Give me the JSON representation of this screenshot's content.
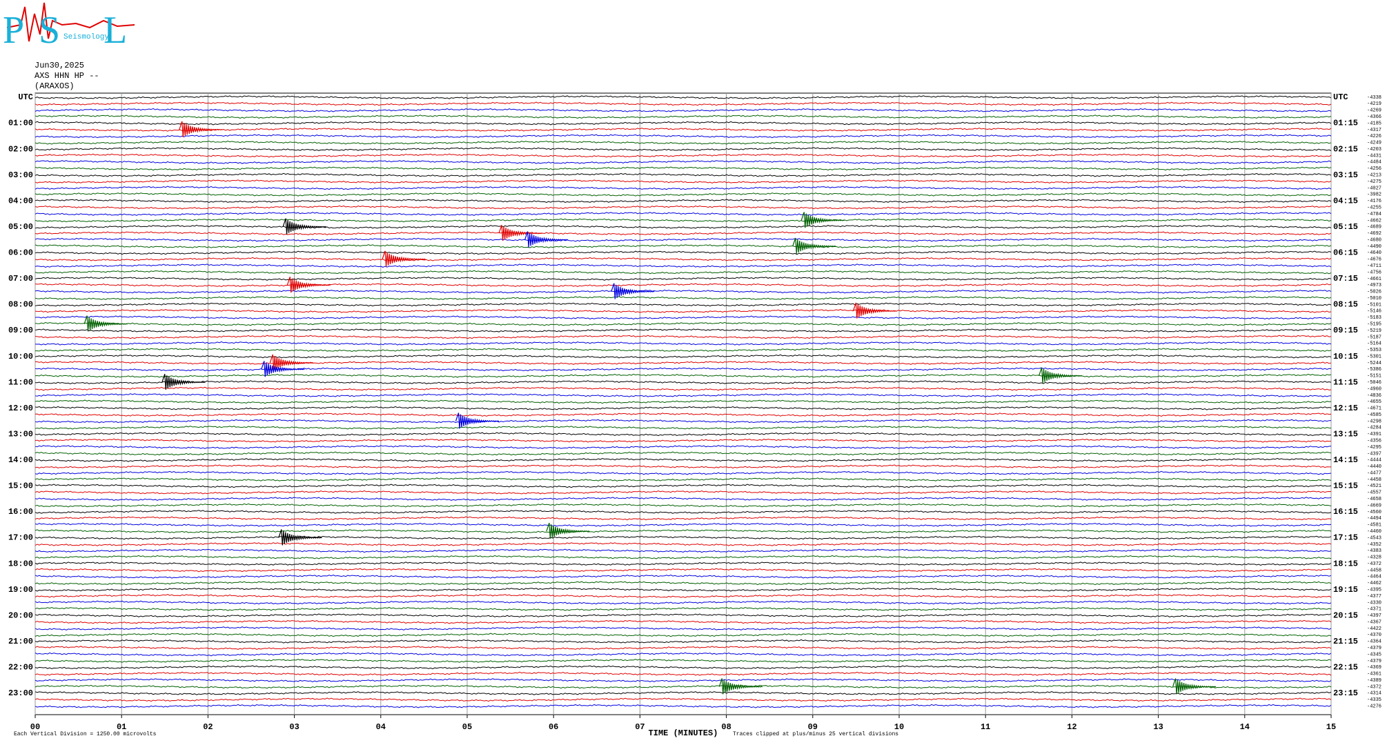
{
  "logo": {
    "letters": [
      "P",
      "S",
      "L"
    ],
    "subtitle": "Seismology"
  },
  "header": {
    "date": "Jun30,2025",
    "channel": "AXS HHN HP --",
    "station": "(ARAXOS)"
  },
  "chart_data": {
    "type": "helicorder",
    "trace_colors": [
      "#000000",
      "#e00000",
      "#0000e0",
      "#006000"
    ],
    "xlim": [
      0,
      15
    ],
    "xticks": [
      {
        "value": 0,
        "label": "00"
      },
      {
        "value": 1,
        "label": "01"
      },
      {
        "value": 2,
        "label": "02"
      },
      {
        "value": 3,
        "label": "03"
      },
      {
        "value": 4,
        "label": "04"
      },
      {
        "value": 5,
        "label": "05"
      },
      {
        "value": 6,
        "label": "06"
      },
      {
        "value": 7,
        "label": "07"
      },
      {
        "value": 8,
        "label": "08"
      },
      {
        "value": 9,
        "label": "09"
      },
      10,
      11,
      12,
      13,
      14,
      15
    ],
    "x_label": "TIME (MINUTES)",
    "left_labels": [
      "UTC",
      "01:00",
      "02:00",
      "03:00",
      "04:00",
      "05:00",
      "06:00",
      "07:00",
      "08:00",
      "09:00",
      "10:00",
      "11:00",
      "12:00",
      "13:00",
      "14:00",
      "15:00",
      "16:00",
      "17:00",
      "18:00",
      "19:00",
      "20:00",
      "21:00",
      "22:00",
      "23:00"
    ],
    "right_labels": [
      "UTC",
      "01:15",
      "02:15",
      "03:15",
      "04:15",
      "05:15",
      "06:15",
      "07:15",
      "08:15",
      "09:15",
      "10:15",
      "11:15",
      "12:15",
      "13:15",
      "14:15",
      "15:15",
      "16:15",
      "17:15",
      "18:15",
      "19:15",
      "20:15",
      "21:15",
      "22:15",
      "23:15"
    ],
    "trace_offsets": [
      -4338,
      -4219,
      -4269,
      -4366,
      -4185,
      -4317,
      -4226,
      -4249,
      -4203,
      -4431,
      -4484,
      -4256,
      -4213,
      -4275,
      -4027,
      -3982,
      -4176,
      -4255,
      -4784,
      -4662,
      -4689,
      -4692,
      -4680,
      -4490,
      -4640,
      -4676,
      -4711,
      -4756,
      -4661,
      -4973,
      -5026,
      -5010,
      -5101,
      -5146,
      -5183,
      -5195,
      -5219,
      -5187,
      -5164,
      -5353,
      -5301,
      -5244,
      -5386,
      -5151,
      -5046,
      -4960,
      -4836,
      -4655,
      -4671,
      -4585,
      -4298,
      -4284,
      -4391,
      -4356,
      -4295,
      -4397,
      -4444,
      -4440,
      -4477,
      -4458,
      -4521,
      -4557,
      -4658,
      -4669,
      -4560,
      -4494,
      -4581,
      -4460,
      -4543,
      -4352,
      -4383,
      -4328,
      -4372,
      -4458,
      -4464,
      -4462,
      -4395,
      -4377,
      -4330,
      -4371,
      -4397,
      -4367,
      -4422,
      -4370,
      -4364,
      -4379,
      -4345,
      -4379,
      -4369,
      -4361,
      -4389,
      -4372,
      -4314,
      -4335,
      -4276
    ],
    "event_minutes": [
      76.7,
      293.9,
      302.9,
      320.4,
      335.7,
      353.8,
      379.05,
      437.95,
      456.7,
      504.5,
      525.6,
      617.75,
      632.65,
      656.65,
      661.5,
      754.9,
      1010.95,
      1022.85,
      1372.95,
      1378.2
    ],
    "scale_note": "Each Vertical Division = 1250.00 microvolts",
    "clip_note": "Traces clipped at plus/minus 25 vertical divisions"
  }
}
